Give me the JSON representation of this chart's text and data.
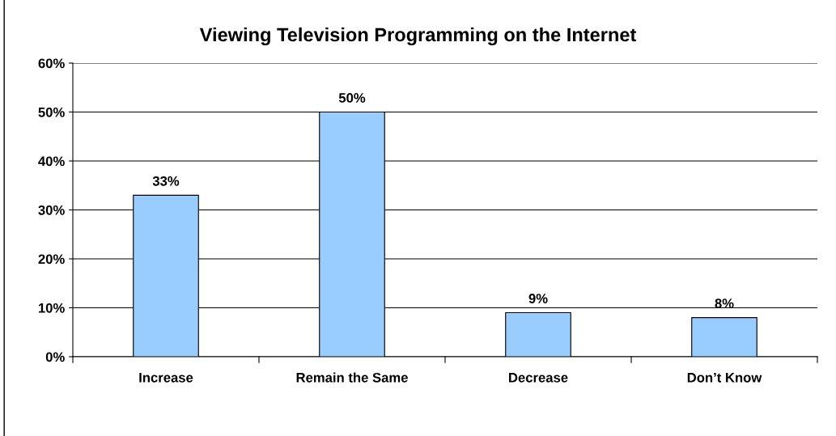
{
  "chart_data": {
    "type": "bar",
    "title": "Viewing Television Programming on the Internet",
    "categories": [
      "Increase",
      "Remain the Same",
      "Decrease",
      "Don’t Know"
    ],
    "values": [
      33,
      50,
      9,
      8
    ],
    "value_labels": [
      "33%",
      "50%",
      "9%",
      "8%"
    ],
    "color": "#99ccff",
    "ylim": [
      0,
      60
    ],
    "yticks": [
      {
        "value": 0,
        "label": "0%"
      },
      {
        "value": 10,
        "label": "10%"
      },
      {
        "value": 20,
        "label": "20%"
      },
      {
        "value": 30,
        "label": "30%"
      },
      {
        "value": 40,
        "label": "40%"
      },
      {
        "value": 50,
        "label": "50%"
      },
      {
        "value": 60,
        "label": "60%"
      }
    ],
    "grid": "y",
    "legend": false
  }
}
